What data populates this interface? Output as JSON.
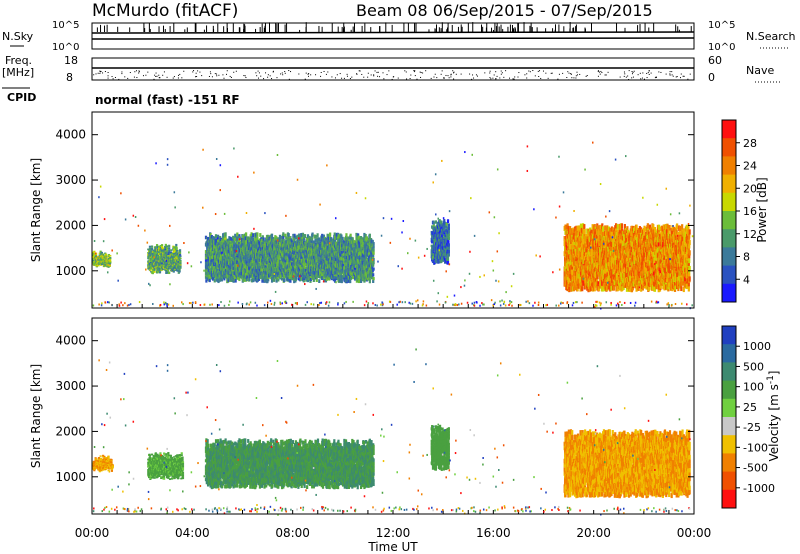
{
  "header": {
    "station": "McMurdo (fitACF)",
    "beam_info": "Beam 08 06/Sep/2015 - 07/Sep/2015"
  },
  "top_panels": {
    "nsky_label": "N.Sky",
    "nsearch_label": "N.Search",
    "freq_label": "Freq.",
    "freq_unit": "[MHz]",
    "nave_label": "Nave",
    "cpid_label": "CPID",
    "cpid_text": "normal (fast) -151 RF",
    "noise_ticks": [
      "10^5",
      "10^0"
    ],
    "noise_ticks_right": [
      "10^5",
      "10^0"
    ],
    "freq_ticks": [
      "18",
      "8"
    ],
    "nave_ticks": [
      "60",
      "0"
    ]
  },
  "x_axis": {
    "label": "Time UT",
    "ticks": [
      "00:00",
      "04:00",
      "08:00",
      "12:00",
      "16:00",
      "20:00",
      "00:00"
    ]
  },
  "chart_data": [
    {
      "type": "heatmap",
      "panel": "power",
      "ylabel": "Slant Range [km]",
      "y_ticks": [
        1000,
        2000,
        3000,
        4000
      ],
      "ylim": [
        180,
        4500
      ],
      "xlim": [
        0,
        24
      ],
      "colorbar": {
        "label": "Power [dB]",
        "ticks": [
          "4",
          "8",
          "12",
          "16",
          "20",
          "24",
          "28"
        ],
        "colors": [
          "#1a1aff",
          "#2a52c0",
          "#3b7a9a",
          "#4a9a6a",
          "#6bbd3a",
          "#c8d800",
          "#f0b000",
          "#f08000",
          "#f05000",
          "#ff1010"
        ]
      },
      "regions": [
        {
          "t0": 0.0,
          "t1": 0.7,
          "r0": 1150,
          "r1": 1300,
          "level": 0.45
        },
        {
          "t0": 2.2,
          "t1": 3.5,
          "r0": 1000,
          "r1": 1450,
          "level": 0.35
        },
        {
          "t0": 4.5,
          "t1": 11.2,
          "r0": 800,
          "r1": 1700,
          "level": 0.3
        },
        {
          "t0": 13.5,
          "t1": 14.2,
          "r0": 1200,
          "r1": 2000,
          "level": 0.2
        },
        {
          "t0": 18.8,
          "t1": 23.8,
          "r0": 600,
          "r1": 1900,
          "level": 0.75
        }
      ]
    },
    {
      "type": "heatmap",
      "panel": "velocity",
      "ylabel": "Slant Range [km]",
      "y_ticks": [
        1000,
        2000,
        3000,
        4000
      ],
      "ylim": [
        180,
        4500
      ],
      "xlim": [
        0,
        24
      ],
      "colorbar": {
        "label": "Velocity [m s^-1]",
        "ticks": [
          "1000",
          "500",
          "100",
          "25",
          "-25",
          "-100",
          "-500",
          "-1000"
        ],
        "colors": [
          "#2040c0",
          "#2a6aa0",
          "#3d8a70",
          "#4aa040",
          "#70d040",
          "#c8c8c8",
          "#f0c000",
          "#f08000",
          "#f05000",
          "#ff1010"
        ]
      },
      "regions": [
        {
          "t0": 0.0,
          "t1": 0.8,
          "r0": 1200,
          "r1": 1350,
          "velocity": -300
        },
        {
          "t0": 2.2,
          "t1": 3.6,
          "r0": 1000,
          "r1": 1400,
          "velocity": 120
        },
        {
          "t0": 4.5,
          "t1": 11.2,
          "r0": 800,
          "r1": 1700,
          "velocity": 300
        },
        {
          "t0": 13.5,
          "t1": 14.2,
          "r0": 1200,
          "r1": 2000,
          "velocity": 200
        },
        {
          "t0": 18.8,
          "t1": 23.8,
          "r0": 600,
          "r1": 1900,
          "velocity": -300
        }
      ]
    }
  ]
}
